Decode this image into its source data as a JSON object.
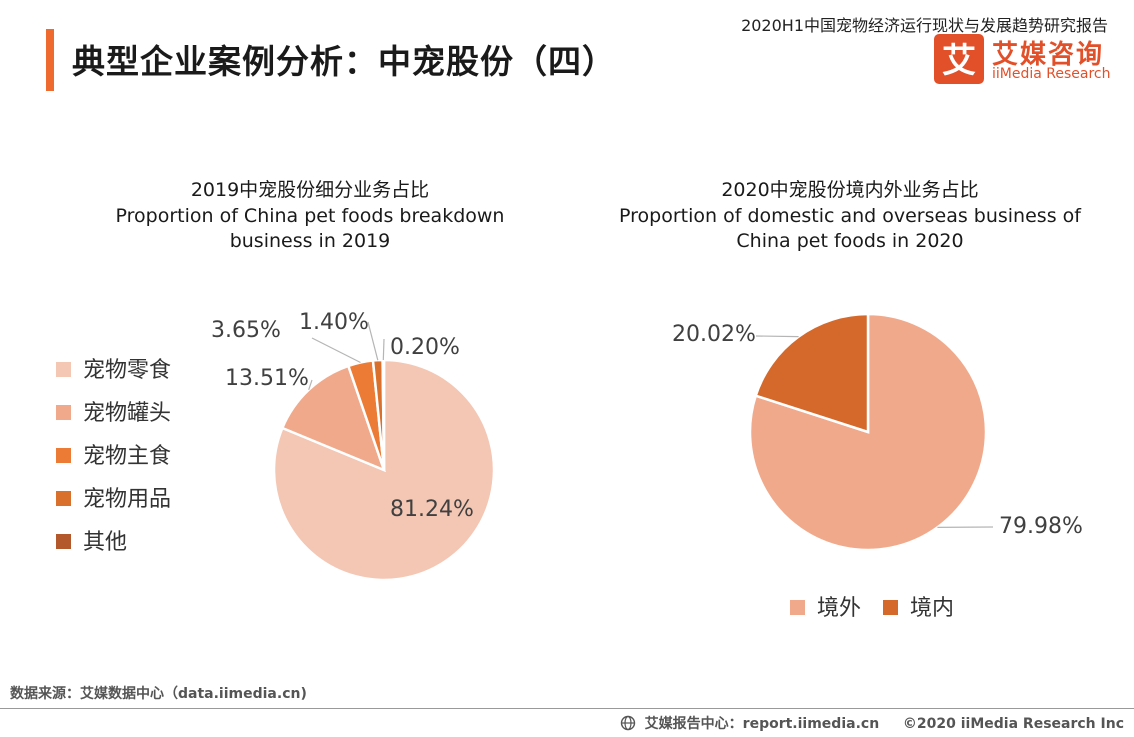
{
  "header": {
    "title": "典型企业案例分析：中宠股份（四）",
    "report_name": "2020H1中国宠物经济运行现状与发展趋势研究报告",
    "logo_cn": "艾媒咨询",
    "logo_en": "iiMedia Research",
    "logo_mark": "艾",
    "accent_color": "#ef6a2f"
  },
  "chart_data": [
    {
      "type": "pie",
      "title_cn": "2019中宠股份细分业务占比",
      "title_en_line1": "Proportion of China pet foods  breakdown",
      "title_en_line2": "business in 2019",
      "categories": [
        "宠物零食",
        "宠物罐头",
        "宠物主食",
        "宠物用品",
        "其他"
      ],
      "values": [
        81.24,
        13.51,
        3.65,
        1.4,
        0.2
      ],
      "labels": [
        "81.24%",
        "13.51%",
        "3.65%",
        "1.40%",
        "0.20%"
      ],
      "colors": [
        "#f4c6b4",
        "#f0a98b",
        "#ec7b35",
        "#d9712c",
        "#b3582a"
      ],
      "legend_position": "left"
    },
    {
      "type": "pie",
      "title_cn": "2020中宠股份境内外业务占比",
      "title_en_line1": "Proportion of domestic and overseas business of",
      "title_en_line2": "China pet foods in 2020",
      "categories": [
        "境外",
        "境内"
      ],
      "values": [
        79.98,
        20.02
      ],
      "labels": [
        "79.98%",
        "20.02%"
      ],
      "colors": [
        "#f0a98b",
        "#d4692b"
      ],
      "legend_position": "bottom"
    }
  ],
  "footer": {
    "source": "数据来源：艾媒数据中心（data.iimedia.cn)",
    "report_center": "艾媒报告中心：report.iimedia.cn",
    "copyright": "©2020  iiMedia Research  Inc"
  }
}
